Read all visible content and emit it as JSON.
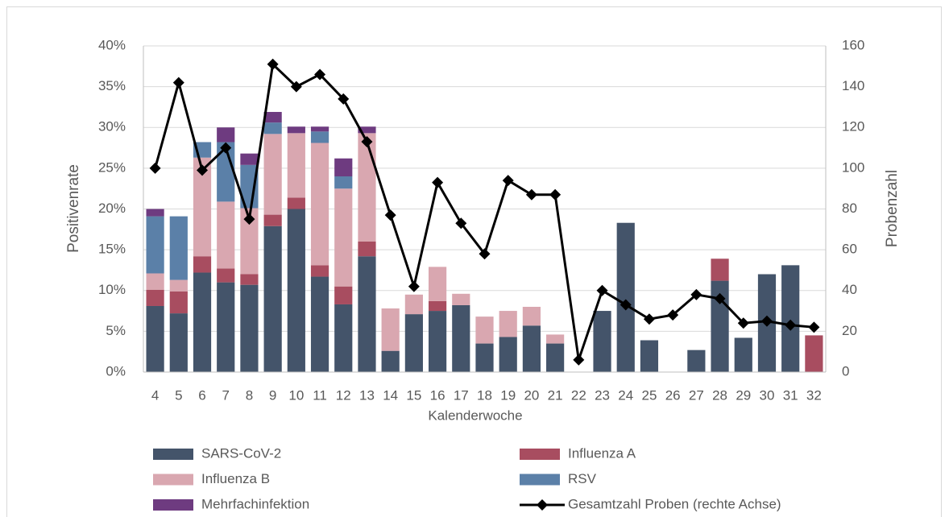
{
  "chart_data": {
    "type": "bar",
    "stacked": true,
    "x_label": "Kalenderwoche",
    "y_label": "Positivenrate",
    "y2_label": "Probenzahl",
    "categories": [
      "4",
      "5",
      "6",
      "7",
      "8",
      "9",
      "10",
      "11",
      "12",
      "13",
      "14",
      "15",
      "16",
      "17",
      "18",
      "19",
      "20",
      "21",
      "22",
      "23",
      "24",
      "25",
      "26",
      "27",
      "28",
      "29",
      "30",
      "31",
      "32"
    ],
    "ylim": [
      0,
      40
    ],
    "yticks": [
      {
        "value": 0,
        "label": "0%"
      },
      {
        "value": 5,
        "label": "5%"
      },
      {
        "value": 10,
        "label": "10%"
      },
      {
        "value": 15,
        "label": "15%"
      },
      {
        "value": 20,
        "label": "20%"
      },
      {
        "value": 25,
        "label": "25%"
      },
      {
        "value": 30,
        "label": "30%"
      },
      {
        "value": 35,
        "label": "35%"
      },
      {
        "value": 40,
        "label": "40%"
      }
    ],
    "y2lim": [
      0,
      160
    ],
    "y2ticks": [
      0,
      20,
      40,
      60,
      80,
      100,
      120,
      140,
      160
    ],
    "series": [
      {
        "name": "SARS-CoV-2",
        "color": "#44546a",
        "type": "bar",
        "values": [
          8.1,
          7.2,
          12.2,
          11.0,
          10.7,
          17.9,
          20.0,
          11.7,
          8.3,
          14.2,
          2.6,
          7.1,
          7.5,
          8.2,
          3.5,
          4.3,
          5.7,
          3.5,
          0,
          7.5,
          18.3,
          3.9,
          0,
          2.7,
          11.2,
          4.2,
          12.0,
          13.1,
          0
        ]
      },
      {
        "name": "Influenza A",
        "color": "#a84d60",
        "type": "bar",
        "values": [
          2.0,
          2.7,
          2.0,
          1.7,
          1.3,
          1.4,
          1.4,
          1.4,
          2.2,
          1.8,
          0,
          0,
          1.2,
          0,
          0,
          0,
          0,
          0,
          0,
          0,
          0,
          0,
          0,
          0,
          2.7,
          0,
          0,
          0,
          4.5
        ]
      },
      {
        "name": "Influenza B",
        "color": "#d9a7b0",
        "type": "bar",
        "values": [
          2.0,
          1.4,
          12.1,
          8.2,
          8.1,
          9.9,
          7.9,
          15.0,
          12.0,
          13.3,
          5.2,
          2.4,
          4.2,
          1.4,
          3.3,
          3.2,
          2.3,
          1.1,
          0,
          0,
          0,
          0,
          0,
          0,
          0,
          0,
          0,
          0,
          0
        ]
      },
      {
        "name": "RSV",
        "color": "#5b80a8",
        "type": "bar",
        "values": [
          7.0,
          7.8,
          1.9,
          7.3,
          5.3,
          1.4,
          0,
          1.4,
          1.5,
          0,
          0,
          0,
          0,
          0,
          0,
          0,
          0,
          0,
          0,
          0,
          0,
          0,
          0,
          0,
          0,
          0,
          0,
          0,
          0
        ]
      },
      {
        "name": "Mehrfachinfektion",
        "color": "#6e3b80",
        "type": "bar",
        "values": [
          0.9,
          0,
          0,
          1.8,
          1.4,
          1.3,
          0.8,
          0.6,
          2.2,
          0.8,
          0,
          0,
          0,
          0,
          0,
          0,
          0,
          0,
          0,
          0,
          0,
          0,
          0,
          0,
          0,
          0,
          0,
          0,
          0
        ]
      },
      {
        "name": "Gesamtzahl Proben (rechte Achse)",
        "color": "#000000",
        "type": "line",
        "axis": "y2",
        "values": [
          100,
          142,
          99,
          110,
          75,
          151,
          140,
          146,
          134,
          113,
          77,
          42,
          93,
          73,
          58,
          94,
          87,
          87,
          6,
          40,
          33,
          26,
          28,
          38,
          36,
          24,
          25,
          23,
          22
        ]
      }
    ]
  }
}
